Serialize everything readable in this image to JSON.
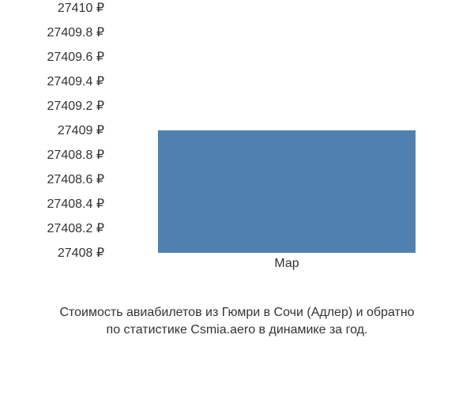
{
  "chart": {
    "type": "bar",
    "y_ticks": [
      {
        "label": "27410 ₽",
        "value": 27410
      },
      {
        "label": "27409.8 ₽",
        "value": 27409.8
      },
      {
        "label": "27409.6 ₽",
        "value": 27409.6
      },
      {
        "label": "27409.4 ₽",
        "value": 27409.4
      },
      {
        "label": "27409.2 ₽",
        "value": 27409.2
      },
      {
        "label": "27409 ₽",
        "value": 27409
      },
      {
        "label": "27408.8 ₽",
        "value": 27408.8
      },
      {
        "label": "27408.6 ₽",
        "value": 27408.6
      },
      {
        "label": "27408.4 ₽",
        "value": 27408.4
      },
      {
        "label": "27408.2 ₽",
        "value": 27408.2
      },
      {
        "label": "27408 ₽",
        "value": 27408
      }
    ],
    "x_ticks": [
      {
        "label": "Мар",
        "position_pct": 50
      }
    ],
    "bars": [
      {
        "category": "Мар",
        "value": 27409,
        "left_pct": 12,
        "width_pct": 76
      }
    ],
    "ylim": [
      27408,
      27410
    ],
    "bar_color": "#5080b0",
    "background_color": "#ffffff",
    "text_color": "#333333",
    "tick_fontsize": 16,
    "caption_fontsize": 16
  },
  "caption": {
    "line1": "Стоимость авиабилетов из Гюмри в Сочи (Адлер) и обратно",
    "line2": "по статистике Csmia.aero в динамике за год."
  }
}
